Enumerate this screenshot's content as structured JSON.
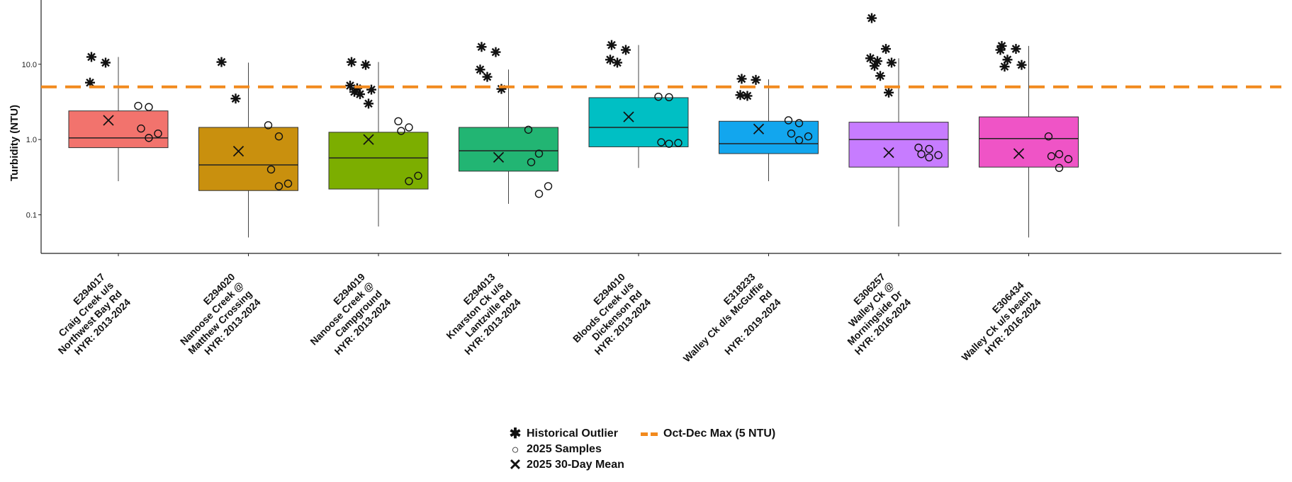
{
  "chart_data": {
    "type": "box",
    "ylabel": "Turbidity (NTU)",
    "y_scale": "log",
    "ylim": [
      0.035,
      60
    ],
    "y_ticks": [
      {
        "value": 0.1,
        "label": "0.1"
      },
      {
        "value": 1.0,
        "label": "1.0"
      },
      {
        "value": 10.0,
        "label": "10.0"
      }
    ],
    "grid": false,
    "reference_line": {
      "label": "Oct-Dec Max (5 NTU)",
      "value": 5,
      "color": "#F28A1E"
    },
    "legend_position": "bottom",
    "legend": {
      "outlier": "Historical Outlier",
      "sample": "2025 Samples",
      "mean": "2025 30-Day Mean",
      "maxline": "Oct-Dec Max (5 NTU)"
    },
    "sites": [
      {
        "id": "E294017",
        "label_lines": [
          "E294017",
          "Craig Creek u/s",
          "Northwest Bay Rd",
          "HYR: 2013-2024"
        ],
        "color": "#F2736D",
        "whisker_low": 0.28,
        "q1": 0.78,
        "median": 1.05,
        "q3": 2.4,
        "whisker_high": 12.5,
        "mean_2025": 1.8,
        "samples": [
          2.8,
          2.7,
          1.4,
          1.2,
          1.05
        ],
        "outliers": [
          12.5,
          10.5,
          5.7
        ]
      },
      {
        "id": "E294020",
        "label_lines": [
          "E294020",
          "Nanoose Creek @",
          "Matthew Crossing",
          "HYR: 2013-2024"
        ],
        "color": "#C9900E",
        "whisker_low": 0.05,
        "q1": 0.21,
        "median": 0.46,
        "q3": 1.45,
        "whisker_high": 10.5,
        "mean_2025": 0.7,
        "samples": [
          1.55,
          1.1,
          0.4,
          0.26,
          0.24
        ],
        "outliers": [
          10.7,
          3.5
        ]
      },
      {
        "id": "E294019",
        "label_lines": [
          "E294019",
          "Nanoose Creek @",
          "Campground",
          "HYR: 2013-2024"
        ],
        "color": "#7CAE00",
        "whisker_low": 0.07,
        "q1": 0.22,
        "median": 0.57,
        "q3": 1.25,
        "whisker_high": 10.7,
        "mean_2025": 1.0,
        "samples": [
          1.75,
          1.45,
          1.3,
          0.33,
          0.28
        ],
        "outliers": [
          10.7,
          9.8,
          5.2,
          4.8,
          4.6,
          4.3,
          4.0,
          3.0
        ]
      },
      {
        "id": "E294013",
        "label_lines": [
          "E294013",
          "Knarston Ck u/s",
          "Lantzville Rd",
          "HYR: 2013-2024"
        ],
        "color": "#22B573",
        "whisker_low": 0.14,
        "q1": 0.38,
        "median": 0.71,
        "q3": 1.45,
        "whisker_high": 8.5,
        "mean_2025": 0.58,
        "samples": [
          1.35,
          0.65,
          0.5,
          0.24,
          0.19
        ],
        "outliers": [
          17.0,
          14.5,
          8.5,
          6.8,
          4.7
        ]
      },
      {
        "id": "E294010",
        "label_lines": [
          "E294010",
          "Bloods Creek u/s",
          "Dickenson Rd",
          "HYR: 2013-2024"
        ],
        "color": "#00BFC4",
        "whisker_low": 0.42,
        "q1": 0.8,
        "median": 1.45,
        "q3": 3.6,
        "whisker_high": 18.0,
        "mean_2025": 2.0,
        "samples": [
          3.7,
          3.65,
          0.92,
          0.9,
          0.88
        ],
        "outliers": [
          18.0,
          15.5,
          11.5,
          10.5
        ]
      },
      {
        "id": "E318233",
        "label_lines": [
          "E318233",
          "Walley Ck d/s McGuffie",
          "Rd",
          "HYR: 2019-2024"
        ],
        "color": "#12A6EE",
        "whisker_low": 0.28,
        "q1": 0.65,
        "median": 0.88,
        "q3": 1.75,
        "whisker_high": 6.3,
        "mean_2025": 1.38,
        "samples": [
          1.8,
          1.65,
          1.2,
          1.1,
          0.98
        ],
        "outliers": [
          6.4,
          6.2,
          3.9,
          3.8
        ]
      },
      {
        "id": "E306257",
        "label_lines": [
          "E306257",
          "Walley Ck @",
          "Morningside Dr",
          "HYR: 2016-2024"
        ],
        "color": "#C77CFF",
        "whisker_low": 0.07,
        "q1": 0.43,
        "median": 1.0,
        "q3": 1.7,
        "whisker_high": 12.0,
        "mean_2025": 0.67,
        "samples": [
          0.78,
          0.75,
          0.64,
          0.62,
          0.58
        ],
        "outliers": [
          41.0,
          16.0,
          12.0,
          11.0,
          10.5,
          9.5,
          7.0,
          4.2
        ]
      },
      {
        "id": "E306434",
        "label_lines": [
          "E306434",
          "Walley Ck u/s beach",
          "HYR: 2016-2024"
        ],
        "color": "#EF54C6",
        "whisker_low": 0.05,
        "q1": 0.43,
        "median": 1.03,
        "q3": 2.0,
        "whisker_high": 17.5,
        "mean_2025": 0.65,
        "samples": [
          1.1,
          0.64,
          0.6,
          0.55,
          0.42
        ],
        "outliers": [
          17.5,
          16.0,
          15.5,
          11.5,
          9.8,
          9.3
        ]
      }
    ]
  }
}
